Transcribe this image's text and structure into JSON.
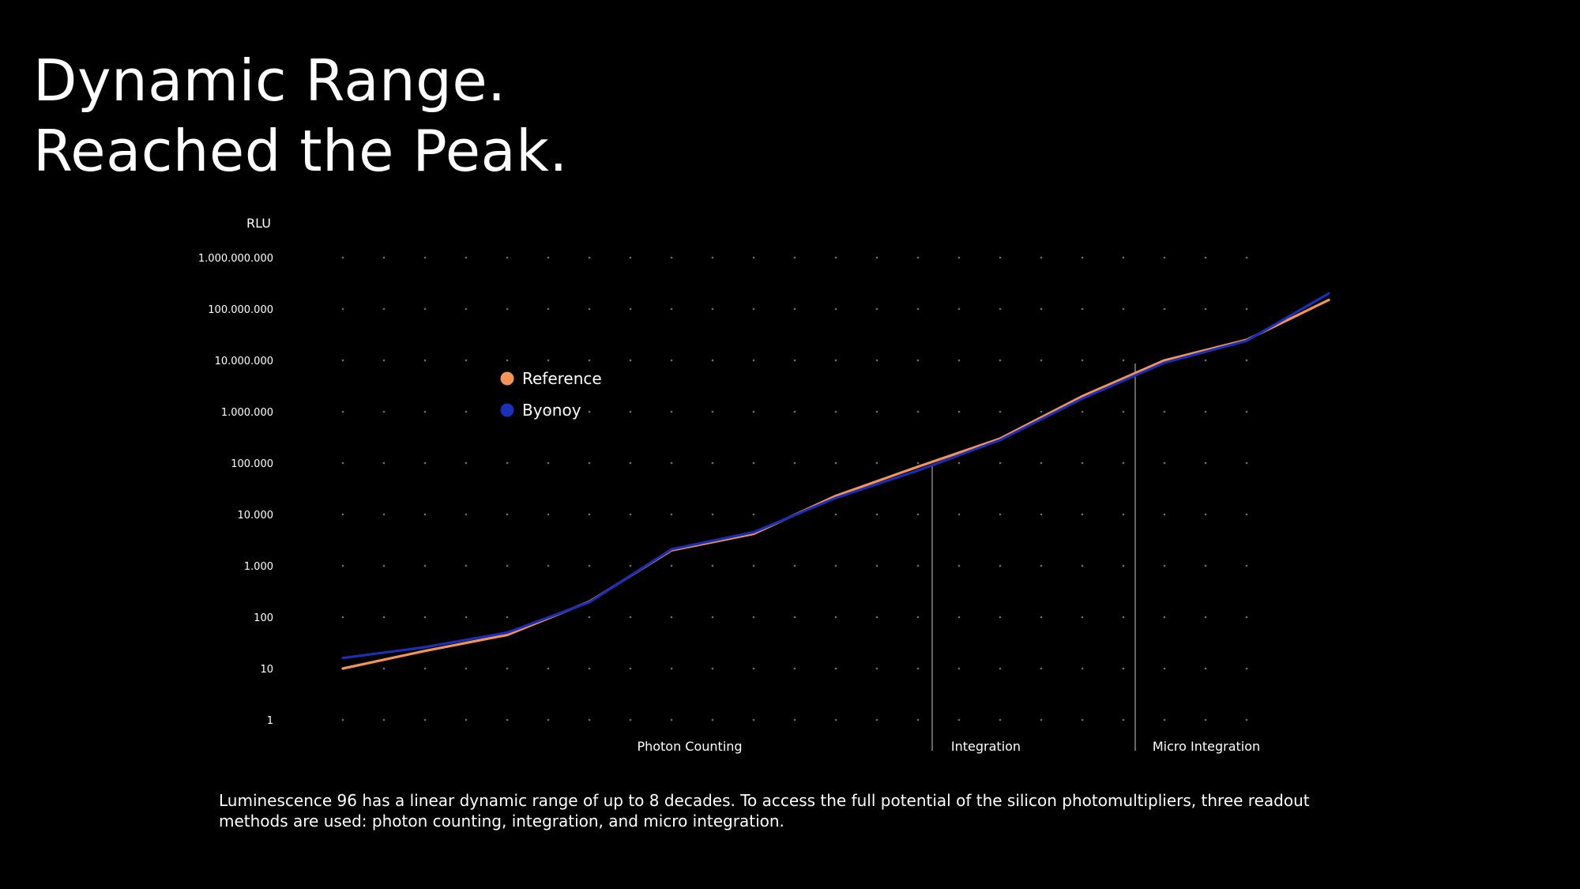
{
  "headline": {
    "line1": "Dynamic Range.",
    "line2": "Reached the Peak."
  },
  "caption": "Luminescence 96 has a linear dynamic range of up to 8 decades. To access the full potential of the silicon photomultipliers, three readout methods are used:  photon counting, integration, and micro integration.",
  "chart_data": {
    "type": "line",
    "ylabel": "RLU",
    "yscale": "log",
    "ylim": [
      1,
      1000000000
    ],
    "yticks": [
      "1.000.000.000",
      "100.000.000",
      "10.000.000",
      "1.000.000",
      "100.000",
      "10.000",
      "1.000",
      "100",
      "10",
      "1"
    ],
    "grid": "dotted",
    "x": [
      1,
      2,
      3,
      4,
      5,
      6,
      7,
      8,
      9,
      10,
      11,
      12,
      13
    ],
    "series": [
      {
        "name": "Reference",
        "color": "#f4935a",
        "values": [
          10,
          22,
          45,
          200,
          2000,
          4200,
          23000,
          85000,
          300000,
          2000000,
          10000000,
          25000000,
          150000000
        ]
      },
      {
        "name": "Byonoy",
        "color": "#1b2fb8",
        "values": [
          16,
          26,
          50,
          195,
          2100,
          4500,
          21000,
          72000,
          280000,
          1800000,
          9000000,
          24000000,
          200000000
        ]
      }
    ],
    "regions": [
      {
        "label": "Photon Counting"
      },
      {
        "label": "Integration"
      },
      {
        "label": "Micro Integration"
      }
    ],
    "legend_position": "upper-left"
  }
}
